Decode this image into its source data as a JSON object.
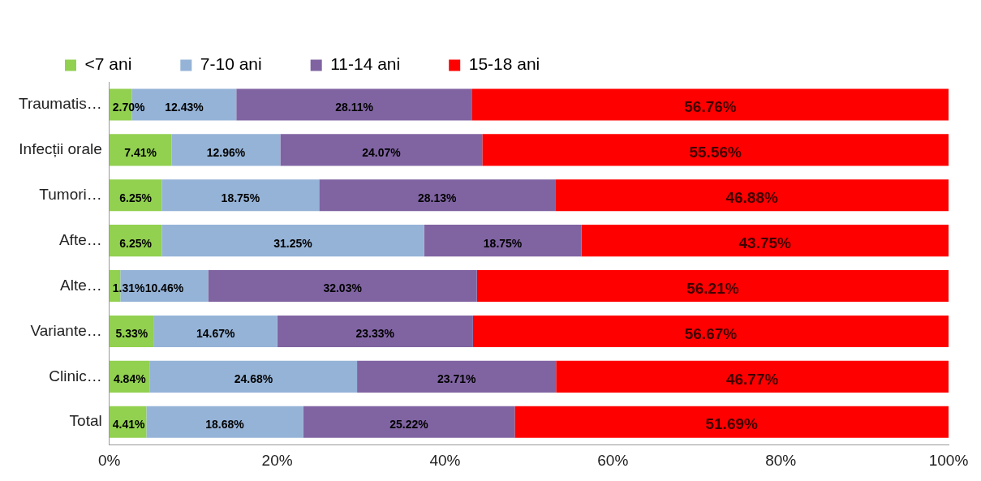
{
  "chart_data": {
    "type": "bar",
    "orientation": "horizontal",
    "stacked": true,
    "legend": "top",
    "grid": false,
    "categories": [
      "Traumatis…",
      "Infecții orale",
      "Tumori…",
      "Afte…",
      "Alte…",
      "Variante…",
      "Clinic…",
      "Total"
    ],
    "series": [
      {
        "name": "<7 ani",
        "color": "#92d050",
        "values": [
          2.7,
          7.41,
          6.25,
          6.25,
          1.31,
          5.33,
          4.84,
          4.41
        ],
        "value_labels": [
          "2.70%",
          "7.41%",
          "6.25%",
          "6.25%",
          "1.31%",
          "5.33%",
          "4.84%",
          "4.41%"
        ]
      },
      {
        "name": "7-10 ani",
        "color": "#95b3d7",
        "values": [
          12.43,
          12.96,
          18.75,
          31.25,
          10.46,
          14.67,
          24.68,
          18.68
        ],
        "value_labels": [
          "12.43%",
          "12.96%",
          "18.75%",
          "31.25%",
          "10.46%",
          "14.67%",
          "24.68%",
          "18.68%"
        ]
      },
      {
        "name": "11-14 ani",
        "color": "#8064a2",
        "values": [
          28.11,
          24.07,
          28.13,
          18.75,
          32.03,
          23.33,
          23.71,
          25.22
        ],
        "value_labels": [
          "28.11%",
          "24.07%",
          "28.13%",
          "18.75%",
          "32.03%",
          "23.33%",
          "23.71%",
          "25.22%"
        ]
      },
      {
        "name": "15-18 ani",
        "color": "#ff0000",
        "values": [
          56.76,
          55.56,
          46.88,
          43.75,
          56.21,
          56.67,
          46.77,
          51.69
        ],
        "value_labels": [
          "56.76%",
          "55.56%",
          "46.88%",
          "43.75%",
          "56.21%",
          "56.67%",
          "46.77%",
          "51.69%"
        ]
      }
    ],
    "xlim": [
      0,
      100
    ],
    "xticks": [
      {
        "value": 0,
        "label": "0%"
      },
      {
        "value": 20,
        "label": "20%"
      },
      {
        "value": 40,
        "label": "40%"
      },
      {
        "value": 60,
        "label": "60%"
      },
      {
        "value": 80,
        "label": "80%"
      },
      {
        "value": 100,
        "label": "100%"
      }
    ]
  }
}
